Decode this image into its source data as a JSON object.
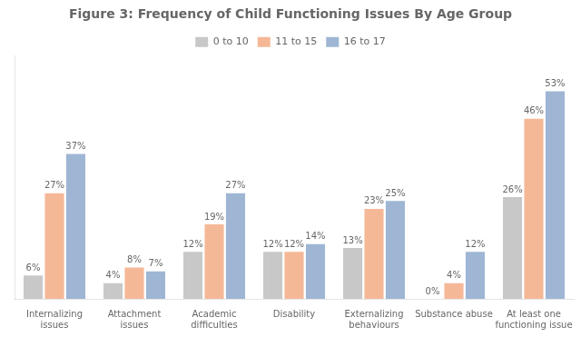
{
  "chart_data": {
    "type": "bar",
    "title": "Figure 3: Frequency of Child Functioning Issues By Age Group",
    "categories": [
      "Internalizing\nissues",
      "Attachment\nissues",
      "Academic\ndifficulties",
      "Disability",
      "Externalizing\nbehaviours",
      "Substance abuse",
      "At least one\nfunctioning issue"
    ],
    "series": [
      {
        "name": "0 to 10",
        "color": "#c8c8c8",
        "values": [
          6,
          4,
          12,
          12,
          13,
          0,
          26
        ],
        "value_labels": [
          "6%",
          "4%",
          "12%",
          "12%",
          "13%",
          "0%",
          "26%"
        ]
      },
      {
        "name": "11 to 15",
        "color": "#f5b897",
        "values": [
          27,
          8,
          19,
          12,
          23,
          4,
          46
        ],
        "value_labels": [
          "27%",
          "8%",
          "19%",
          "12%",
          "23%",
          "4%",
          "46%"
        ]
      },
      {
        "name": "16 to 17",
        "color": "#9eb6d4",
        "values": [
          37,
          7,
          27,
          14,
          25,
          12,
          53
        ],
        "value_labels": [
          "37%",
          "7%",
          "27%",
          "14%",
          "25%",
          "12%",
          "53%"
        ]
      }
    ],
    "ylim": [
      0,
      62
    ],
    "grid": false,
    "legend": "top",
    "data_labels": true,
    "tick_labels": "x"
  }
}
